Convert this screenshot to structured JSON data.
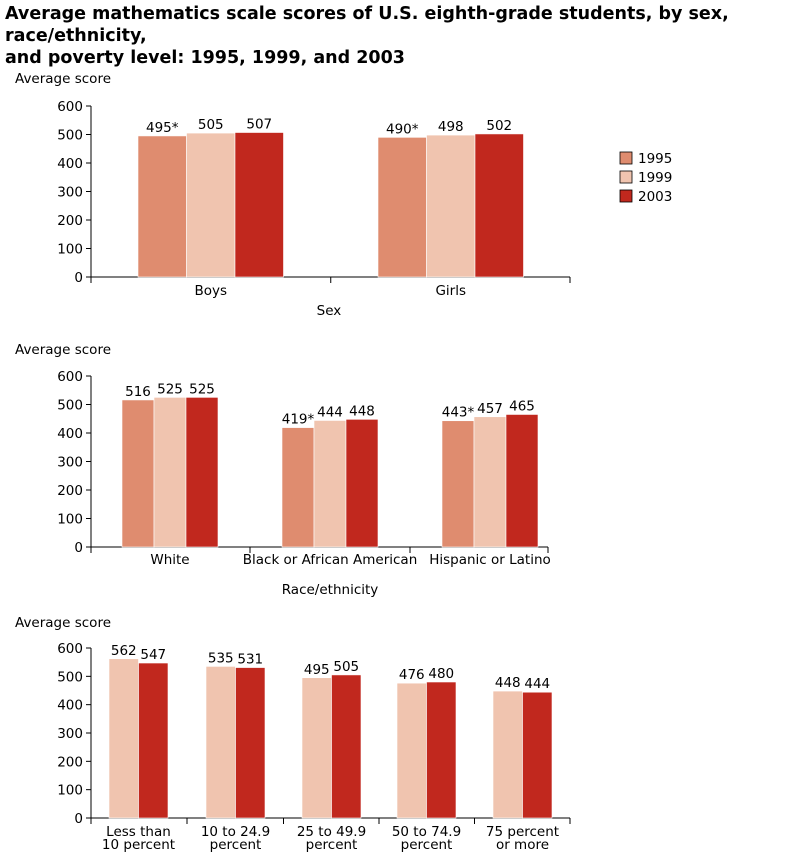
{
  "title": {
    "line1": "Average mathematics scale scores of U.S. eighth-grade students, by  sex, race/ethnicity,",
    "line2": "and poverty level: 1995, 1999, and 2003"
  },
  "legend": [
    {
      "label": "1995",
      "color": "#df8c6f"
    },
    {
      "label": "1999",
      "color": "#f0c4af"
    },
    {
      "label": "2003",
      "color": "#c1281e"
    }
  ],
  "chart_data": [
    {
      "type": "bar",
      "ylabel": "Average score",
      "xlabel": "Sex",
      "ylim": [
        0,
        600
      ],
      "yticks": [
        "0",
        "100",
        "200",
        "300",
        "400",
        "500",
        "600"
      ],
      "categories": [
        [
          "Boys"
        ],
        [
          "Girls"
        ]
      ],
      "series": [
        {
          "name": "1995",
          "values": [
            495,
            490
          ],
          "labels": [
            "495*",
            "490*"
          ]
        },
        {
          "name": "1999",
          "values": [
            505,
            498
          ],
          "labels": [
            "505",
            "498"
          ]
        },
        {
          "name": "2003",
          "values": [
            507,
            502
          ],
          "labels": [
            "507",
            "502"
          ]
        }
      ]
    },
    {
      "type": "bar",
      "ylabel": "Average score",
      "xlabel": "Race/ethnicity",
      "ylim": [
        0,
        600
      ],
      "yticks": [
        "0",
        "100",
        "200",
        "300",
        "400",
        "500",
        "600"
      ],
      "categories": [
        [
          "White"
        ],
        [
          "Black or African American"
        ],
        [
          "Hispanic or Latino"
        ]
      ],
      "series": [
        {
          "name": "1995",
          "values": [
            516,
            419,
            443
          ],
          "labels": [
            "516",
            "419*",
            "443*"
          ]
        },
        {
          "name": "1999",
          "values": [
            525,
            444,
            457
          ],
          "labels": [
            "525",
            "444",
            "457"
          ]
        },
        {
          "name": "2003",
          "values": [
            525,
            448,
            465
          ],
          "labels": [
            "525",
            "448",
            "465"
          ]
        }
      ]
    },
    {
      "type": "bar",
      "ylabel": "Average score",
      "xlabel": "",
      "ylim": [
        0,
        600
      ],
      "yticks": [
        "0",
        "100",
        "200",
        "300",
        "400",
        "500",
        "600"
      ],
      "categories": [
        [
          "Less than",
          "10 percent"
        ],
        [
          "10 to 24.9",
          "percent"
        ],
        [
          "25 to 49.9",
          "percent"
        ],
        [
          "50 to 74.9",
          "percent"
        ],
        [
          "75 percent",
          "or more"
        ]
      ],
      "series": [
        {
          "name": "1999",
          "values": [
            562,
            535,
            495,
            476,
            448
          ],
          "labels": [
            "562",
            "535",
            "495",
            "476",
            "448"
          ]
        },
        {
          "name": "2003",
          "values": [
            547,
            531,
            505,
            480,
            444
          ],
          "labels": [
            "547",
            "531",
            "505",
            "480",
            "444"
          ]
        }
      ]
    }
  ]
}
